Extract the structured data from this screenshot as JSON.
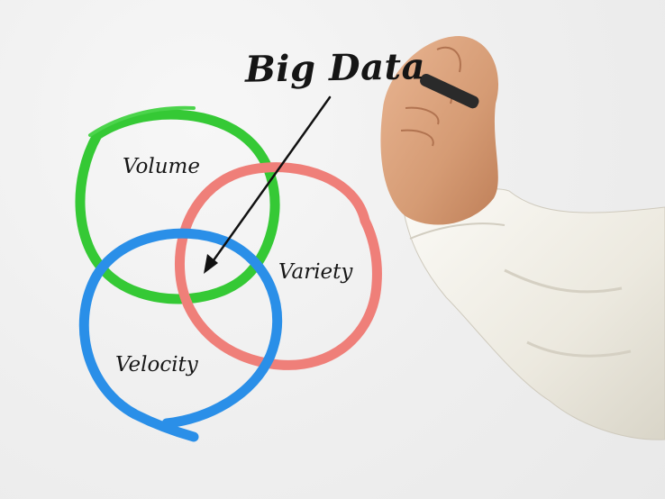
{
  "diagram": {
    "title": "Big Data",
    "circles": [
      {
        "label": "Volume",
        "color": "#33cc33"
      },
      {
        "label": "Variety",
        "color": "#ef7f79"
      },
      {
        "label": "Velocity",
        "color": "#2a8fe8"
      }
    ],
    "arrow_color": "#111111"
  },
  "photo": {
    "background_color": "#ececec",
    "shirt_color": "#f4f2ea",
    "skin_color": "#d9a07b"
  }
}
